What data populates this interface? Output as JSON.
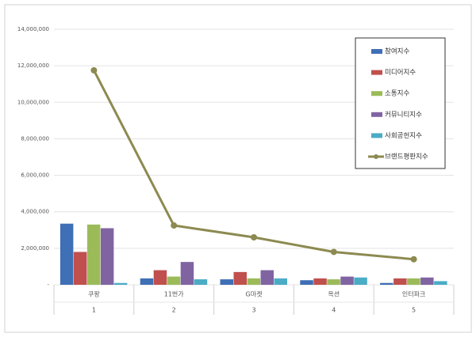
{
  "chart_data": {
    "type": "bar",
    "categories": [
      "쿠팡",
      "11번가",
      "G마켓",
      "옥션",
      "인터파크"
    ],
    "subcategories": [
      "1",
      "2",
      "3",
      "4",
      "5"
    ],
    "series": [
      {
        "name": "참여지수",
        "color": "#3f6fb5",
        "values": [
          3350000,
          350000,
          300000,
          250000,
          100000
        ]
      },
      {
        "name": "미디어지수",
        "color": "#c0504d",
        "values": [
          1800000,
          800000,
          700000,
          350000,
          350000
        ]
      },
      {
        "name": "소통지수",
        "color": "#9bbb59",
        "values": [
          3300000,
          450000,
          350000,
          300000,
          350000
        ]
      },
      {
        "name": "커뮤니티지수",
        "color": "#8064a2",
        "values": [
          3100000,
          1250000,
          800000,
          450000,
          400000
        ]
      },
      {
        "name": "사회공헌지수",
        "color": "#4bacc6",
        "values": [
          100000,
          300000,
          350000,
          400000,
          200000
        ]
      },
      {
        "name": "브랜드평판지수",
        "color": "#8c8a50",
        "type": "line",
        "values": [
          11750000,
          3250000,
          2600000,
          1800000,
          1400000
        ]
      }
    ],
    "ylim": [
      0,
      14000000
    ],
    "yticks": [
      {
        "value": 0,
        "label": "-"
      },
      {
        "value": 2000000,
        "label": "2,000,000"
      },
      {
        "value": 4000000,
        "label": "4,000,000"
      },
      {
        "value": 6000000,
        "label": "6,000,000"
      },
      {
        "value": 8000000,
        "label": "8,000,000"
      },
      {
        "value": 10000000,
        "label": "10,000,000"
      },
      {
        "value": 12000000,
        "label": "12,000,000"
      },
      {
        "value": 14000000,
        "label": "14,000,000"
      }
    ],
    "grid": true,
    "legend": "upper right"
  }
}
